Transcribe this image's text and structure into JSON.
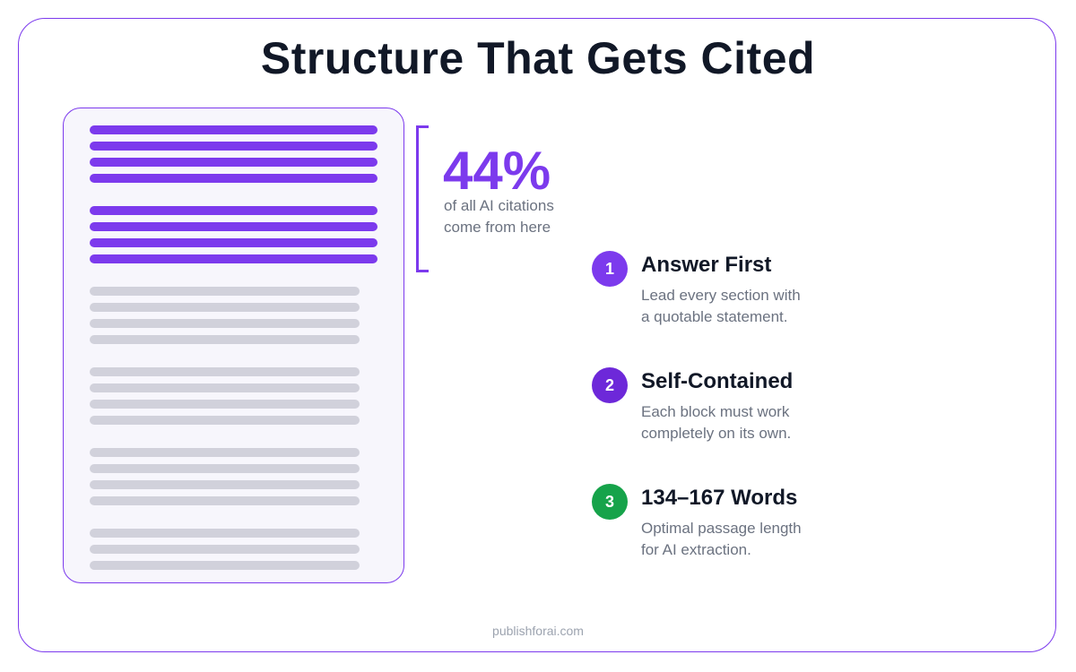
{
  "title": "Structure That Gets Cited",
  "colors": {
    "accent": "#7c3aed",
    "accent_dark": "#6d28d9",
    "green": "#16a34a",
    "line_gray": "#d1d1db",
    "text": "#111827",
    "muted": "#6b7280"
  },
  "document": {
    "highlighted_groups": [
      4,
      4
    ],
    "plain_groups": [
      4,
      4,
      4,
      3
    ]
  },
  "stat": {
    "value": "44%",
    "line1": "of all AI citations",
    "line2": "come from here"
  },
  "steps": [
    {
      "number": "1",
      "title": "Answer First",
      "line1": "Lead every section with",
      "line2": "a quotable statement.",
      "color": "#7c3aed"
    },
    {
      "number": "2",
      "title": "Self-Contained",
      "line1": "Each block must work",
      "line2": "completely on its own.",
      "color": "#6d28d9"
    },
    {
      "number": "3",
      "title": "134–167 Words",
      "line1": "Optimal passage length",
      "line2": "for AI extraction.",
      "color": "#16a34a"
    }
  ],
  "footer": "publishforai.com"
}
